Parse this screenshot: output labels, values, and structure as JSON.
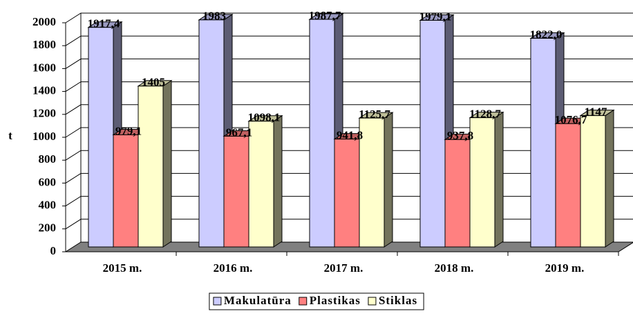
{
  "chart_data": {
    "type": "bar3d",
    "ylabel": "t",
    "categories": [
      "2015 m.",
      "2016 m.",
      "2017 m.",
      "2018 m.",
      "2019 m."
    ],
    "series": [
      {
        "name": "Makulatūra",
        "color": "#ccccff",
        "values": [
          1917.4,
          1983,
          1987.7,
          1979.1,
          1822.0
        ],
        "value_labels": [
          "1917,4",
          "1983",
          "1987,7",
          "1979,1",
          "1822,0"
        ]
      },
      {
        "name": "Plastikas",
        "color": "#ff8080",
        "values": [
          979.1,
          967.1,
          941.8,
          937.8,
          1076.7
        ],
        "value_labels": [
          "979,1",
          "967,1",
          "941,8",
          "937,8",
          "1076,7"
        ]
      },
      {
        "name": "Stiklas",
        "color": "#ffffcc",
        "values": [
          1405,
          1098.1,
          1125.7,
          1128.7,
          1147
        ],
        "value_labels": [
          "1405",
          "1098,1",
          "1125,7",
          "1128,7",
          "1147"
        ]
      }
    ],
    "ylim": [
      0,
      2000
    ],
    "yticks": [
      0,
      200,
      400,
      600,
      800,
      1000,
      1200,
      1400,
      1600,
      1800,
      2000
    ],
    "grid": true,
    "legend": "bottom"
  }
}
